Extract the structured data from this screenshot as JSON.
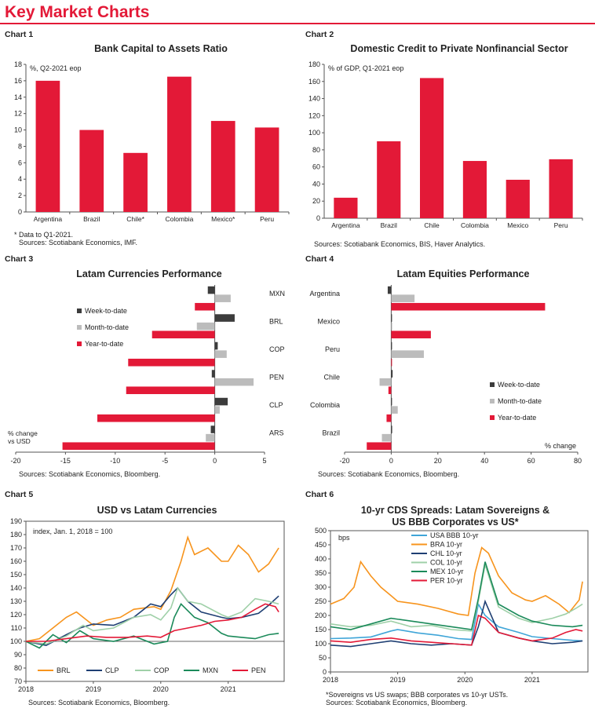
{
  "page": {
    "title": "Key Market Charts"
  },
  "colors": {
    "red": "#e31937",
    "dark": "#3c3c3c",
    "grey": "#bcbcbc",
    "orange": "#f7941d",
    "navy": "#1f3f73",
    "lightgreen": "#9fd0a8",
    "green": "#1b8a5a",
    "lightblue": "#3fa5d8"
  },
  "charts": [
    {
      "label": "Chart 1",
      "title": "Bank Capital to Assets Ratio",
      "unit": "%, Q2-2021 eop",
      "notes": [
        "* Data to Q1-2021.",
        "Sources: Scotiabank Economics, IMF."
      ]
    },
    {
      "label": "Chart 2",
      "title": "Domestic Credit to Private Nonfinancial Sector",
      "unit": "% of GDP, Q1-2021 eop",
      "notes": [
        "Sources: Scotiabank Economics, BIS, Haver Analytics."
      ]
    },
    {
      "label": "Chart 3",
      "title": "Latam Currencies Performance",
      "unit": "% change vs USD",
      "notes": [
        "Sources: Scotiabank Economics, Bloomberg."
      ]
    },
    {
      "label": "Chart 4",
      "title": "Latam Equities Performance",
      "unit": "% change",
      "notes": [
        "Sources: Scotiabank Economics, Bloomberg."
      ]
    },
    {
      "label": "Chart 5",
      "title": "USD vs Latam Currencies",
      "unit": "index, Jan. 1, 2018 = 100",
      "notes": [
        "Sources: Scotiabank Economics, Bloomberg."
      ]
    },
    {
      "label": "Chart 6",
      "title_lines": [
        "10-yr CDS Spreads: Latam Sovereigns &",
        "US BBB Corporates vs US*"
      ],
      "unit": "bps",
      "notes": [
        "*Sovereigns vs US swaps; BBB corporates vs 10-yr USTs.",
        "Sources: Scotiabank Economics, Bloomberg."
      ]
    }
  ],
  "chart_data": [
    {
      "type": "bar",
      "categories": [
        "Argentina",
        "Brazil",
        "Chile*",
        "Colombia",
        "Mexico*",
        "Peru"
      ],
      "values": [
        16.0,
        10.0,
        7.2,
        16.5,
        11.1,
        10.3
      ],
      "ylim": [
        0,
        18
      ],
      "yticks": [
        0,
        2,
        4,
        6,
        8,
        10,
        12,
        14,
        16,
        18
      ]
    },
    {
      "type": "bar",
      "categories": [
        "Argentina",
        "Brazil",
        "Chile",
        "Colombia",
        "Mexico",
        "Peru"
      ],
      "values": [
        24,
        90,
        164,
        67,
        45,
        69
      ],
      "ylim": [
        0,
        180
      ],
      "yticks": [
        0,
        20,
        40,
        60,
        80,
        100,
        120,
        140,
        160,
        180
      ]
    },
    {
      "type": "bar",
      "orientation": "horizontal",
      "categories": [
        "MXN",
        "BRL",
        "COP",
        "PEN",
        "CLP",
        "ARS"
      ],
      "series": [
        {
          "name": "Week-to-date",
          "values": [
            -0.7,
            2.0,
            0.3,
            -0.3,
            1.3,
            -0.4
          ]
        },
        {
          "name": "Month-to-date",
          "values": [
            1.6,
            -1.8,
            1.2,
            3.9,
            0.5,
            -0.9
          ]
        },
        {
          "name": "Year-to-date",
          "values": [
            -2.0,
            -6.3,
            -8.7,
            -8.9,
            -11.8,
            -15.3
          ]
        }
      ],
      "xlim": [
        -20,
        5
      ],
      "xticks": [
        -20,
        -15,
        -10,
        -5,
        0,
        5
      ],
      "legend": "left"
    },
    {
      "type": "bar",
      "orientation": "horizontal",
      "categories": [
        "Argentina",
        "Mexico",
        "Peru",
        "Chile",
        "Colombia",
        "Brazil"
      ],
      "series": [
        {
          "name": "Week-to-date",
          "values": [
            -1.5,
            0.2,
            0.2,
            0.6,
            0.3,
            0.4
          ]
        },
        {
          "name": "Month-to-date",
          "values": [
            10.0,
            0.4,
            14.0,
            -5.0,
            2.8,
            -4.0
          ]
        },
        {
          "name": "Year-to-date",
          "values": [
            66.0,
            17.0,
            0.2,
            -1.2,
            -2.0,
            -10.5
          ]
        }
      ],
      "xlim": [
        -20,
        80
      ],
      "xticks": [
        -20,
        0,
        20,
        40,
        60,
        80
      ],
      "legend": "right"
    },
    {
      "type": "line",
      "x_range": [
        "2018-01-01",
        "2021-10-31"
      ],
      "xticks": [
        "2018",
        "2019",
        "2020",
        "2021"
      ],
      "ylim": [
        70,
        190
      ],
      "yticks": [
        70,
        80,
        90,
        100,
        110,
        120,
        130,
        140,
        150,
        160,
        170,
        180,
        190
      ],
      "series": [
        {
          "name": "BRL",
          "color": "#f7941d",
          "x": [
            2018.0,
            2018.2,
            2018.4,
            2018.6,
            2018.75,
            2019.0,
            2019.2,
            2019.4,
            2019.6,
            2019.9,
            2020.0,
            2020.15,
            2020.3,
            2020.4,
            2020.5,
            2020.7,
            2020.9,
            2021.0,
            2021.15,
            2021.3,
            2021.45,
            2021.6,
            2021.75
          ],
          "values": [
            100,
            102,
            110,
            118,
            122,
            112,
            116,
            118,
            124,
            126,
            124,
            138,
            160,
            178,
            165,
            170,
            160,
            160,
            172,
            165,
            152,
            158,
            170
          ]
        },
        {
          "name": "CLP",
          "color": "#1f3f73",
          "x": [
            2018.0,
            2018.3,
            2018.6,
            2018.8,
            2019.0,
            2019.3,
            2019.6,
            2019.85,
            2020.0,
            2020.15,
            2020.25,
            2020.4,
            2020.6,
            2020.9,
            2021.0,
            2021.2,
            2021.45,
            2021.6,
            2021.75
          ],
          "values": [
            100,
            97,
            105,
            110,
            113,
            112,
            118,
            128,
            126,
            135,
            140,
            130,
            122,
            118,
            117,
            118,
            121,
            127,
            134
          ]
        },
        {
          "name": "COP",
          "color": "#9fd0a8",
          "x": [
            2018.0,
            2018.3,
            2018.6,
            2018.85,
            2019.0,
            2019.3,
            2019.6,
            2019.85,
            2020.0,
            2020.15,
            2020.25,
            2020.4,
            2020.6,
            2020.9,
            2021.0,
            2021.2,
            2021.4,
            2021.6,
            2021.75
          ],
          "values": [
            100,
            98,
            104,
            112,
            108,
            110,
            118,
            120,
            116,
            125,
            140,
            130,
            128,
            120,
            118,
            122,
            132,
            130,
            128
          ]
        },
        {
          "name": "MXN",
          "color": "#1b8a5a",
          "x": [
            2018.0,
            2018.2,
            2018.4,
            2018.6,
            2018.8,
            2019.0,
            2019.3,
            2019.6,
            2019.9,
            2020.1,
            2020.2,
            2020.3,
            2020.5,
            2020.7,
            2020.9,
            2021.0,
            2021.2,
            2021.4,
            2021.6,
            2021.75
          ],
          "values": [
            100,
            95,
            105,
            99,
            108,
            102,
            100,
            104,
            98,
            100,
            118,
            128,
            118,
            114,
            106,
            104,
            103,
            102,
            105,
            106
          ]
        },
        {
          "name": "PEN",
          "color": "#e31937",
          "x": [
            2018.0,
            2018.3,
            2018.6,
            2018.9,
            2019.2,
            2019.5,
            2019.8,
            2020.0,
            2020.2,
            2020.4,
            2020.6,
            2020.8,
            2021.0,
            2021.2,
            2021.4,
            2021.55,
            2021.7,
            2021.75
          ],
          "values": [
            100,
            100,
            102,
            104,
            103,
            103,
            104,
            103,
            108,
            110,
            112,
            115,
            116,
            118,
            124,
            128,
            126,
            122
          ]
        }
      ]
    },
    {
      "type": "line",
      "x_range": [
        "2018-01-01",
        "2021-10-31"
      ],
      "xticks": [
        "2018",
        "2019",
        "2020",
        "2021"
      ],
      "ylim": [
        0,
        500
      ],
      "yticks": [
        0,
        50,
        100,
        150,
        200,
        250,
        300,
        350,
        400,
        450,
        500
      ],
      "series": [
        {
          "name": "USA BBB 10-yr",
          "color": "#3fa5d8",
          "x": [
            2018.0,
            2018.3,
            2018.6,
            2018.9,
            2019.0,
            2019.3,
            2019.6,
            2019.9,
            2020.1,
            2020.2,
            2020.3,
            2020.5,
            2020.8,
            2021.0,
            2021.3,
            2021.6,
            2021.75
          ],
          "values": [
            118,
            120,
            124,
            145,
            150,
            138,
            130,
            118,
            115,
            240,
            200,
            160,
            140,
            125,
            118,
            112,
            110
          ]
        },
        {
          "name": "BRA 10-yr",
          "color": "#f7941d",
          "x": [
            2018.0,
            2018.2,
            2018.35,
            2018.45,
            2018.6,
            2018.75,
            2018.9,
            2019.0,
            2019.3,
            2019.6,
            2019.9,
            2020.05,
            2020.15,
            2020.25,
            2020.35,
            2020.5,
            2020.7,
            2020.9,
            2021.0,
            2021.2,
            2021.4,
            2021.55,
            2021.7,
            2021.75
          ],
          "values": [
            240,
            260,
            300,
            390,
            340,
            300,
            270,
            250,
            240,
            225,
            205,
            200,
            350,
            440,
            420,
            340,
            280,
            255,
            250,
            270,
            240,
            210,
            255,
            320
          ]
        },
        {
          "name": "CHL 10-yr",
          "color": "#1f3f73",
          "x": [
            2018.0,
            2018.3,
            2018.6,
            2018.9,
            2019.2,
            2019.5,
            2019.8,
            2020.1,
            2020.2,
            2020.3,
            2020.5,
            2020.8,
            2021.0,
            2021.3,
            2021.6,
            2021.75
          ],
          "values": [
            95,
            90,
            100,
            110,
            100,
            95,
            100,
            95,
            160,
            250,
            140,
            120,
            110,
            100,
            105,
            110
          ]
        },
        {
          "name": "COL 10-yr",
          "color": "#9fd0a8",
          "x": [
            2018.0,
            2018.3,
            2018.6,
            2018.9,
            2019.2,
            2019.5,
            2019.8,
            2020.1,
            2020.2,
            2020.3,
            2020.5,
            2020.8,
            2021.0,
            2021.3,
            2021.5,
            2021.65,
            2021.75
          ],
          "values": [
            170,
            160,
            165,
            180,
            160,
            165,
            150,
            145,
            250,
            380,
            230,
            190,
            175,
            190,
            205,
            225,
            240
          ]
        },
        {
          "name": "MEX 10-yr",
          "color": "#1b8a5a",
          "x": [
            2018.0,
            2018.3,
            2018.6,
            2018.9,
            2019.2,
            2019.5,
            2019.8,
            2020.1,
            2020.2,
            2020.3,
            2020.5,
            2020.8,
            2021.0,
            2021.3,
            2021.6,
            2021.75
          ],
          "values": [
            160,
            150,
            170,
            190,
            180,
            170,
            160,
            150,
            260,
            390,
            240,
            200,
            180,
            165,
            160,
            165
          ]
        },
        {
          "name": "PER 10-yr",
          "color": "#e31937",
          "x": [
            2018.0,
            2018.3,
            2018.6,
            2018.9,
            2019.2,
            2019.5,
            2019.8,
            2020.1,
            2020.2,
            2020.3,
            2020.5,
            2020.8,
            2021.0,
            2021.3,
            2021.5,
            2021.65,
            2021.75
          ],
          "values": [
            110,
            105,
            115,
            120,
            110,
            105,
            100,
            95,
            200,
            190,
            140,
            120,
            110,
            120,
            140,
            150,
            145
          ]
        }
      ]
    }
  ]
}
